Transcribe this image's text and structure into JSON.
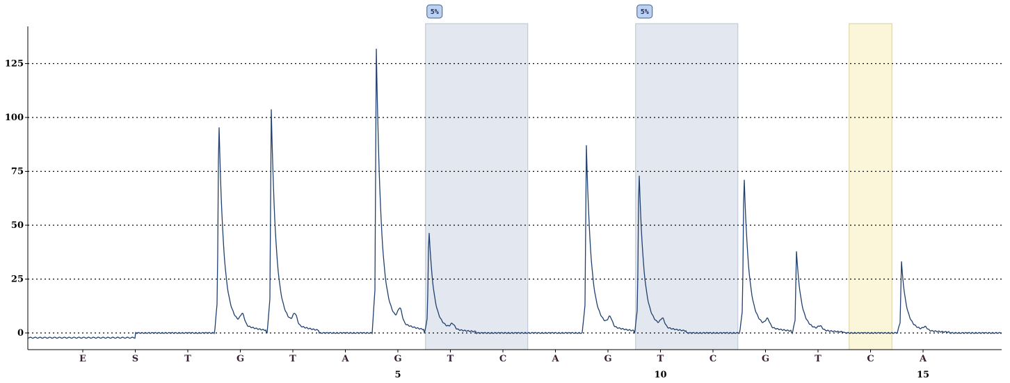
{
  "chart_data": {
    "type": "line",
    "title": "",
    "xlabel": "",
    "ylabel": "",
    "ylim": [
      -5,
      143
    ],
    "y_ticks": [
      0,
      25,
      50,
      75,
      100,
      125
    ],
    "grid": "horizontal dotted",
    "dispensation": [
      "E",
      "S",
      "T",
      "G",
      "T",
      "A",
      "G",
      "T",
      "C",
      "A",
      "G",
      "T",
      "C",
      "G",
      "T",
      "C",
      "A"
    ],
    "position_labels": [
      {
        "dispensation_index": 6,
        "label": "5"
      },
      {
        "dispensation_index": 11,
        "label": "10"
      },
      {
        "dispensation_index": 16,
        "label": "15"
      }
    ],
    "peaks": [
      {
        "dispensation_index": 3,
        "base": "G",
        "height": 102
      },
      {
        "dispensation_index": 4,
        "base": "T",
        "height": 104
      },
      {
        "dispensation_index": 6,
        "base": "G",
        "height": 132
      },
      {
        "dispensation_index": 7,
        "base": "T",
        "height": 50
      },
      {
        "dispensation_index": 10,
        "base": "G",
        "height": 87
      },
      {
        "dispensation_index": 11,
        "base": "T",
        "height": 78
      },
      {
        "dispensation_index": 13,
        "base": "G",
        "height": 76
      },
      {
        "dispensation_index": 14,
        "base": "T",
        "height": 38
      },
      {
        "dispensation_index": 16,
        "base": "A",
        "height": 33
      }
    ],
    "highlight_regions": [
      {
        "from_dispensation": 7,
        "to_dispensation": 8,
        "kind": "variable",
        "badge": "5%"
      },
      {
        "from_dispensation": 11,
        "to_dispensation": 12,
        "kind": "variable",
        "badge": "5%"
      },
      {
        "from_dispensation": 15,
        "to_dispensation": 15,
        "kind": "control",
        "badge": ""
      }
    ]
  },
  "colors": {
    "trace": "#1f3f6e",
    "variable_region": "#e3e8f0",
    "control_region": "#fbf5d9",
    "badge_fill": "#bcd2f0",
    "base_label": "#3a1c33",
    "grid": "#000000"
  }
}
